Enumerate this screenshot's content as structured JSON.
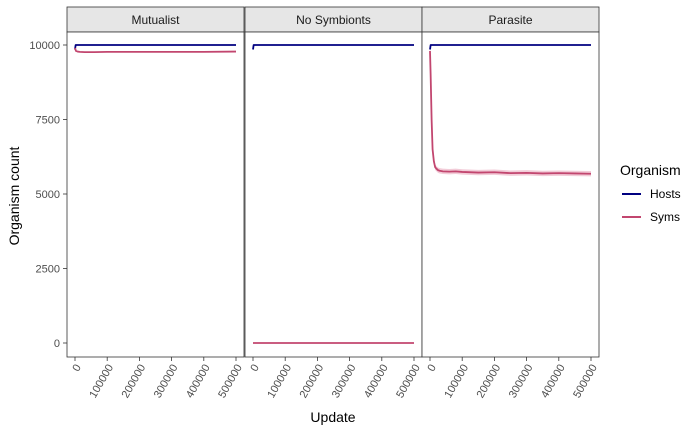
{
  "chart_data": {
    "type": "line",
    "xlabel": "Update",
    "ylabel": "Organism count",
    "xlim": [
      0,
      500000
    ],
    "ylim": [
      0,
      10000
    ],
    "x_ticks": [
      0,
      100000,
      200000,
      300000,
      400000,
      500000
    ],
    "x_tick_labels": [
      "0",
      "100000",
      "200000",
      "300000",
      "400000",
      "500000"
    ],
    "y_ticks": [
      0,
      2500,
      5000,
      7500,
      10000
    ],
    "y_tick_labels": [
      "0",
      "2500",
      "5000",
      "7500",
      "10000"
    ],
    "legend_title": "Organism",
    "legend_position": "right",
    "grid": false,
    "colors": {
      "Hosts": "#000080",
      "Syms": "#c2466f"
    },
    "panels": [
      {
        "label": "Mutualist",
        "series": [
          {
            "name": "Hosts",
            "x": [
              0,
              2000,
              5000,
              10000,
              500000
            ],
            "y": [
              9850,
              10000,
              10000,
              10000,
              10000
            ]
          },
          {
            "name": "Syms",
            "x": [
              0,
              3000,
              8000,
              15000,
              30000,
              60000,
              100000,
              200000,
              300000,
              400000,
              500000
            ],
            "y": [
              9900,
              9800,
              9780,
              9770,
              9760,
              9760,
              9770,
              9770,
              9770,
              9770,
              9780
            ]
          }
        ]
      },
      {
        "label": "No Symbionts",
        "series": [
          {
            "name": "Hosts",
            "x": [
              0,
              2000,
              5000,
              10000,
              500000
            ],
            "y": [
              9850,
              10000,
              10000,
              10000,
              10000
            ]
          },
          {
            "name": "Syms",
            "x": [
              0,
              500000
            ],
            "y": [
              0,
              0
            ]
          }
        ]
      },
      {
        "label": "Parasite",
        "series": [
          {
            "name": "Hosts",
            "x": [
              0,
              2000,
              5000,
              10000,
              500000
            ],
            "y": [
              9850,
              10000,
              10000,
              10000,
              10000
            ]
          },
          {
            "name": "Syms",
            "x": [
              0,
              2000,
              5000,
              8000,
              12000,
              16000,
              20000,
              25000,
              30000,
              40000,
              60000,
              80000,
              100000,
              150000,
              200000,
              250000,
              300000,
              350000,
              400000,
              450000,
              500000
            ],
            "y": [
              9800,
              9000,
              7500,
              6500,
              6100,
              5900,
              5850,
              5800,
              5780,
              5760,
              5750,
              5760,
              5740,
              5720,
              5730,
              5700,
              5710,
              5690,
              5700,
              5690,
              5680
            ]
          }
        ]
      }
    ]
  }
}
